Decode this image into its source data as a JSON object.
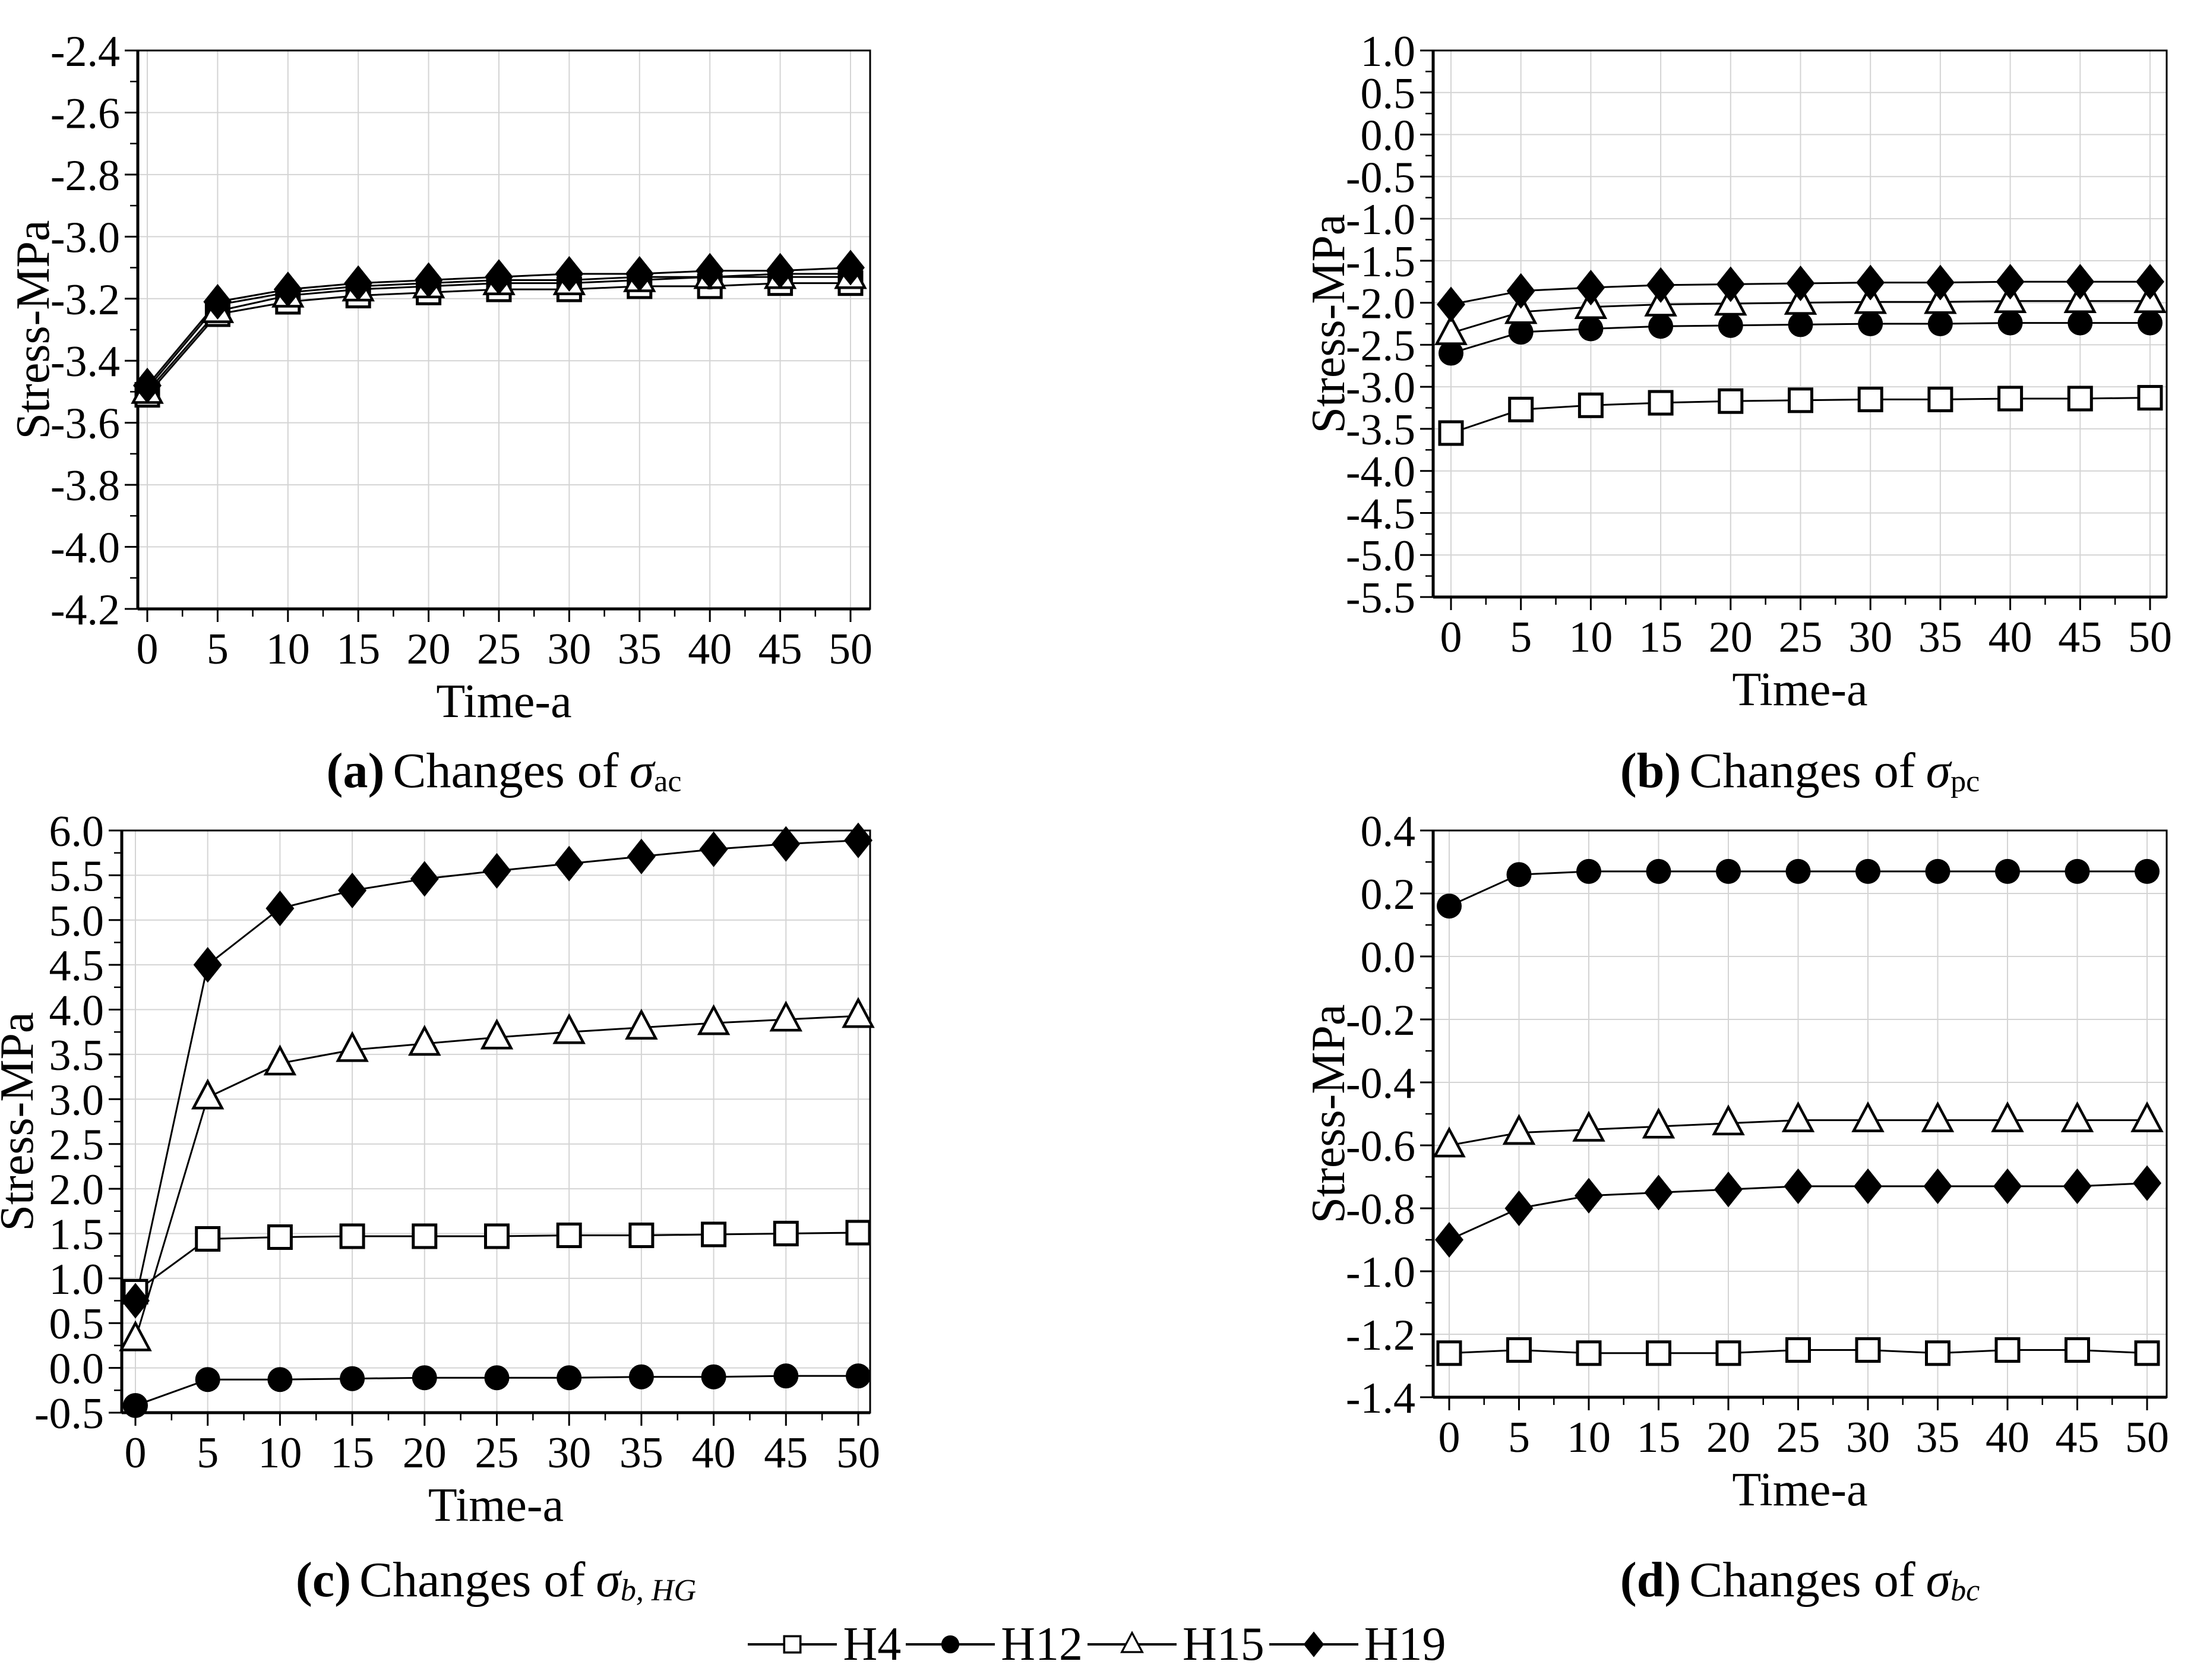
{
  "colors": {
    "line": "#000000",
    "grid": "#d4d4d4",
    "background": "#ffffff",
    "text": "#000000"
  },
  "axis": {
    "x_label": "Time-a",
    "y_label": "Stress-MPa"
  },
  "captions": {
    "a": {
      "label": "(a)",
      "text": "Changes of",
      "symbol": "σ",
      "sub": "ac"
    },
    "b": {
      "label": "(b)",
      "text": "Changes of",
      "symbol": "σ",
      "sub": "pc"
    },
    "c": {
      "label": "(c)",
      "text": "Changes of",
      "symbol": "σ",
      "sub": "b, HG"
    },
    "d": {
      "label": "(d)",
      "text": "Changes of",
      "symbol": "σ",
      "sub": "bc"
    }
  },
  "legend": {
    "items": [
      {
        "label": "H4",
        "marker": "square-open"
      },
      {
        "label": "H12",
        "marker": "circle-filled"
      },
      {
        "label": "H15",
        "marker": "triangle-open"
      },
      {
        "label": "H19",
        "marker": "diamond-filled"
      }
    ]
  },
  "chart_data": [
    {
      "id": "a",
      "type": "line",
      "title": "(a) Changes of σac",
      "xlabel": "Time-a",
      "ylabel": "Stress-MPa",
      "x": [
        0,
        5,
        10,
        15,
        20,
        25,
        30,
        35,
        40,
        45,
        50
      ],
      "xlim": [
        0,
        50
      ],
      "xtick_step": 5,
      "ylim": [
        -4.2,
        -2.4
      ],
      "ytick_step": 0.2,
      "grid": true,
      "series": [
        {
          "name": "H4",
          "marker": "square-open",
          "values": [
            -3.51,
            -3.25,
            -3.21,
            -3.19,
            -3.18,
            -3.17,
            -3.17,
            -3.16,
            -3.16,
            -3.15,
            -3.15
          ]
        },
        {
          "name": "H12",
          "marker": "circle-filled",
          "values": [
            -3.49,
            -3.22,
            -3.18,
            -3.16,
            -3.15,
            -3.14,
            -3.14,
            -3.13,
            -3.13,
            -3.12,
            -3.12
          ]
        },
        {
          "name": "H15",
          "marker": "triangle-open",
          "values": [
            -3.5,
            -3.24,
            -3.19,
            -3.17,
            -3.16,
            -3.15,
            -3.15,
            -3.14,
            -3.13,
            -3.13,
            -3.13
          ]
        },
        {
          "name": "H19",
          "marker": "diamond-filled",
          "values": [
            -3.48,
            -3.21,
            -3.17,
            -3.15,
            -3.14,
            -3.13,
            -3.12,
            -3.12,
            -3.11,
            -3.11,
            -3.1
          ]
        }
      ]
    },
    {
      "id": "b",
      "type": "line",
      "title": "(b) Changes of σpc",
      "xlabel": "Time-a",
      "ylabel": "Stress-MPa",
      "x": [
        0,
        5,
        10,
        15,
        20,
        25,
        30,
        35,
        40,
        45,
        50
      ],
      "xlim": [
        0,
        50
      ],
      "xtick_step": 5,
      "ylim": [
        -5.5,
        1.0
      ],
      "ytick_step": 0.5,
      "grid": true,
      "series": [
        {
          "name": "H4",
          "marker": "square-open",
          "values": [
            -3.55,
            -3.27,
            -3.22,
            -3.19,
            -3.17,
            -3.16,
            -3.15,
            -3.15,
            -3.14,
            -3.14,
            -3.13
          ]
        },
        {
          "name": "H12",
          "marker": "circle-filled",
          "values": [
            -2.6,
            -2.35,
            -2.31,
            -2.28,
            -2.27,
            -2.26,
            -2.25,
            -2.25,
            -2.24,
            -2.24,
            -2.24
          ]
        },
        {
          "name": "H15",
          "marker": "triangle-open",
          "values": [
            -2.36,
            -2.11,
            -2.05,
            -2.02,
            -2.01,
            -2.0,
            -1.99,
            -1.99,
            -1.98,
            -1.98,
            -1.98
          ]
        },
        {
          "name": "H19",
          "marker": "diamond-filled",
          "values": [
            -2.02,
            -1.86,
            -1.82,
            -1.79,
            -1.78,
            -1.77,
            -1.76,
            -1.76,
            -1.75,
            -1.75,
            -1.75
          ]
        }
      ]
    },
    {
      "id": "c",
      "type": "line",
      "title": "(c) Changes of σb, HG",
      "xlabel": "Time-a",
      "ylabel": "Stress-MPa",
      "x": [
        0,
        5,
        10,
        15,
        20,
        25,
        30,
        35,
        40,
        45,
        50
      ],
      "xlim": [
        0,
        50
      ],
      "xtick_step": 5,
      "ylim": [
        -0.5,
        6.0
      ],
      "ytick_step": 0.5,
      "grid": true,
      "series": [
        {
          "name": "H4",
          "marker": "square-open",
          "values": [
            0.85,
            1.44,
            1.46,
            1.47,
            1.47,
            1.47,
            1.48,
            1.48,
            1.49,
            1.5,
            1.51
          ]
        },
        {
          "name": "H12",
          "marker": "circle-filled",
          "values": [
            -0.42,
            -0.13,
            -0.13,
            -0.12,
            -0.11,
            -0.11,
            -0.11,
            -0.1,
            -0.1,
            -0.09,
            -0.09
          ]
        },
        {
          "name": "H15",
          "marker": "triangle-open",
          "values": [
            0.32,
            3.02,
            3.4,
            3.55,
            3.62,
            3.69,
            3.75,
            3.8,
            3.85,
            3.89,
            3.93
          ]
        },
        {
          "name": "H19",
          "marker": "diamond-filled",
          "values": [
            0.75,
            4.5,
            5.13,
            5.33,
            5.46,
            5.55,
            5.63,
            5.71,
            5.79,
            5.85,
            5.89
          ]
        }
      ]
    },
    {
      "id": "d",
      "type": "line",
      "title": "(d) Changes of σbc",
      "xlabel": "Time-a",
      "ylabel": "Stress-MPa",
      "x": [
        0,
        5,
        10,
        15,
        20,
        25,
        30,
        35,
        40,
        45,
        50
      ],
      "xlim": [
        0,
        50
      ],
      "xtick_step": 5,
      "ylim": [
        -1.4,
        0.4
      ],
      "ytick_step": 0.2,
      "grid": true,
      "series": [
        {
          "name": "H4",
          "marker": "square-open",
          "values": [
            -1.26,
            -1.25,
            -1.26,
            -1.26,
            -1.26,
            -1.25,
            -1.25,
            -1.26,
            -1.25,
            -1.25,
            -1.26
          ]
        },
        {
          "name": "H12",
          "marker": "circle-filled",
          "values": [
            0.16,
            0.26,
            0.27,
            0.27,
            0.27,
            0.27,
            0.27,
            0.27,
            0.27,
            0.27,
            0.27
          ]
        },
        {
          "name": "H15",
          "marker": "triangle-open",
          "values": [
            -0.6,
            -0.56,
            -0.55,
            -0.54,
            -0.53,
            -0.52,
            -0.52,
            -0.52,
            -0.52,
            -0.52,
            -0.52
          ]
        },
        {
          "name": "H19",
          "marker": "diamond-filled",
          "values": [
            -0.9,
            -0.8,
            -0.76,
            -0.75,
            -0.74,
            -0.73,
            -0.73,
            -0.73,
            -0.73,
            -0.73,
            -0.72
          ]
        }
      ]
    }
  ]
}
